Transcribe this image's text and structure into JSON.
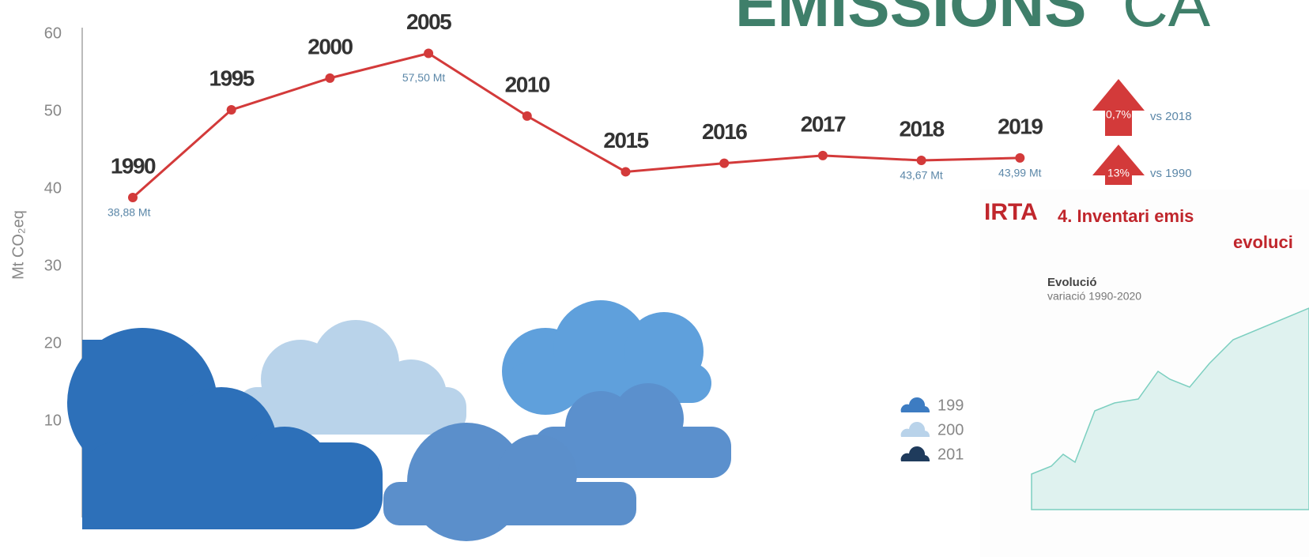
{
  "chart_data": {
    "type": "line",
    "title": "EMISSIONS",
    "title_rest": "CA",
    "y_label": "Mt CO₂eq",
    "categories": [
      "1990",
      "1995",
      "2000",
      "2005",
      "2010",
      "2015",
      "2016",
      "2017",
      "2018",
      "2019"
    ],
    "values": [
      38.88,
      50.2,
      54.3,
      57.5,
      49.4,
      42.2,
      43.3,
      44.3,
      43.67,
      43.99
    ],
    "value_labels": [
      "38,88 Mt",
      null,
      null,
      "57,50 Mt",
      null,
      null,
      null,
      null,
      "43,67 Mt",
      "43,99 Mt"
    ],
    "color": "#d33a3a",
    "ylim": [
      0,
      60
    ],
    "yticks": [
      10,
      20,
      30,
      40,
      50,
      60
    ],
    "legend_labels": [
      "199",
      "200",
      "201"
    ],
    "badges": [
      {
        "value": "0,7%",
        "text": "vs 2018"
      },
      {
        "value": "13%",
        "text": "vs 1990"
      }
    ],
    "inset": {
      "logo": "IRTA",
      "title": "4. Inventari emis",
      "title2": "evoluci",
      "heading": "Evolució",
      "subheading": "variació 1990-2020"
    }
  }
}
